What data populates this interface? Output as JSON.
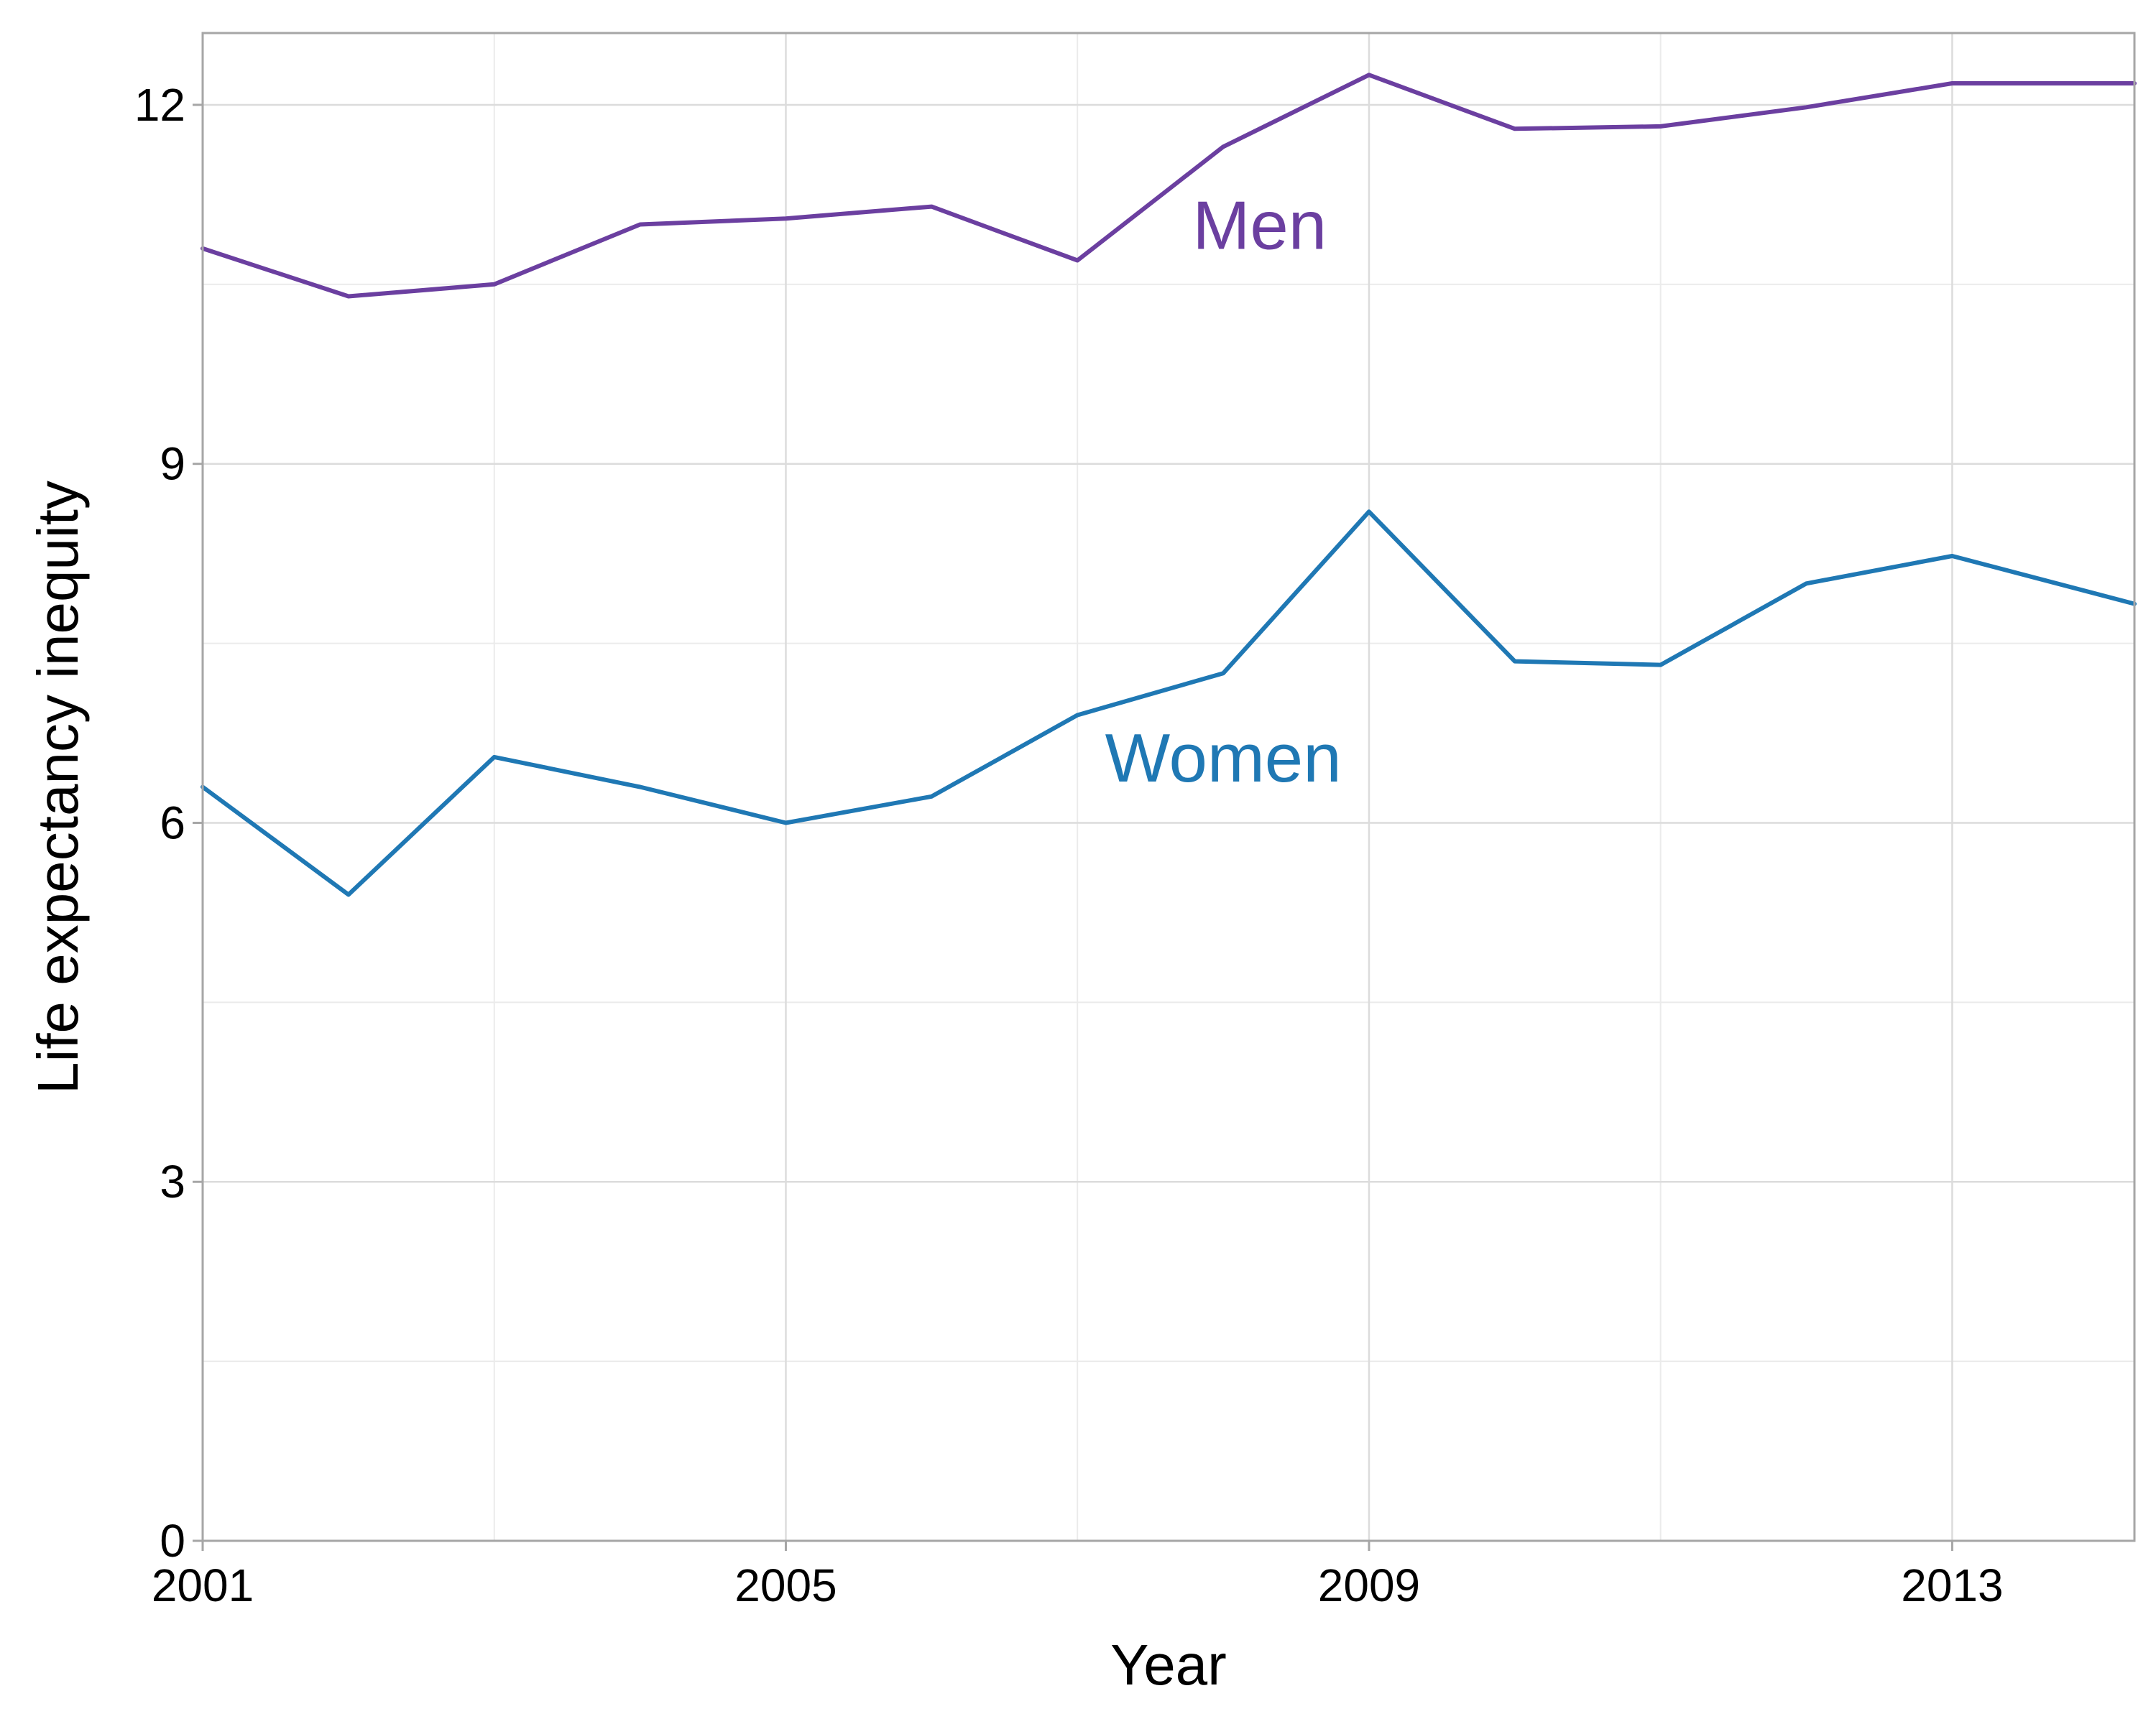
{
  "chart_data": {
    "type": "line",
    "xlabel": "Year",
    "ylabel": "Life expectancy inequity",
    "xlim": [
      2001,
      2014.25
    ],
    "ylim": [
      0,
      12.6
    ],
    "grid": true,
    "legend": "direct labels on lines",
    "x_ticks": [
      "2001",
      "2005",
      "2009",
      "2013"
    ],
    "y_ticks": [
      "0",
      "3",
      "6",
      "9",
      "12"
    ],
    "x": [
      2001,
      2002,
      2003,
      2004,
      2005,
      2006,
      2007,
      2008,
      2009,
      2010,
      2011,
      2012,
      2013,
      2014.25
    ],
    "series": [
      {
        "name": "Men",
        "color": "#6b3fa0",
        "values": [
          10.8,
          10.4,
          10.5,
          11.0,
          11.05,
          11.15,
          10.7,
          11.65,
          12.25,
          11.8,
          11.82,
          11.98,
          12.18,
          12.18
        ],
        "label_at": [
          2008.25,
          11.0
        ]
      },
      {
        "name": "Women",
        "color": "#1f78b4",
        "values": [
          6.3,
          5.4,
          6.55,
          6.3,
          6.0,
          6.22,
          6.9,
          7.25,
          8.6,
          7.35,
          7.32,
          8.0,
          8.23,
          7.83
        ],
        "label_at": [
          2008.0,
          6.55
        ]
      }
    ]
  }
}
